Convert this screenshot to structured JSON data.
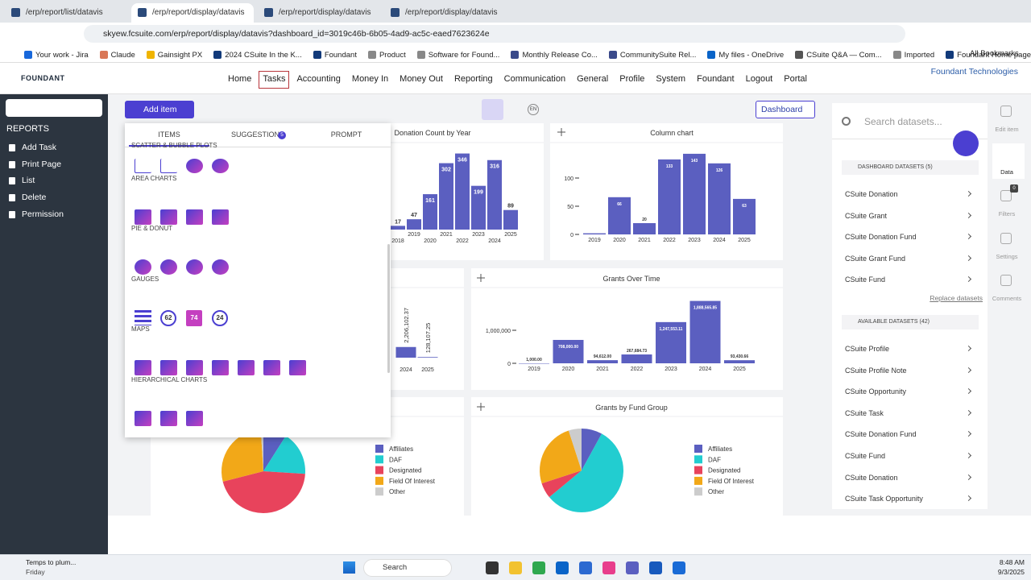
{
  "browser": {
    "tabs": [
      "/erp/report/list/datavis",
      "/erp/report/display/datavis",
      "/erp/report/display/datavis",
      "/erp/report/display/datavis"
    ],
    "url": "skyew.fcsuite.com/erp/report/display/datavis?dashboard_id=3019c46b-6b05-4ad9-ac5c-eaed7623624e",
    "bookmarks": [
      "Your work - Jira",
      "Claude",
      "Gainsight PX",
      "2024 CSuite In the K...",
      "Foundant",
      "Product",
      "Software for Found...",
      "Monthly Release Co...",
      "CommunitySuite Rel...",
      "My files - OneDrive",
      "CSuite Q&A — Com...",
      "Imported",
      "Foundant Home page"
    ],
    "all_bookmarks": "All Bookmarks"
  },
  "app": {
    "logo": "FOUNDANT",
    "nav": [
      "Home",
      "Tasks",
      "Accounting",
      "Money In",
      "Money Out",
      "Reporting",
      "Communication",
      "General",
      "Profile",
      "System",
      "Foundant",
      "Logout",
      "Portal"
    ],
    "active_nav": "Tasks",
    "org": "Foundant Technologies"
  },
  "sidebar": {
    "heading": "REPORTS",
    "items": [
      "Add Task",
      "Print Page",
      "List",
      "Delete",
      "Permission"
    ]
  },
  "toolbar": {
    "add_item": "Add item",
    "dashboard": "Dashboard",
    "language": "EN"
  },
  "add_panel": {
    "tabs": [
      "ITEMS",
      "SUGGESTIONS",
      "PROMPT"
    ],
    "suggestions_count": 5,
    "sections": [
      "SCATTER & BUBBLE PLOTS",
      "AREA CHARTS",
      "PIE & DONUT",
      "GAUGES",
      "MAPS",
      "HIERARCHICAL CHARTS"
    ],
    "gauge_samples": [
      "62",
      "74",
      "24"
    ]
  },
  "widgets": [
    {
      "type": "bar",
      "title": "Donation Count by Year",
      "categories": [
        "2018",
        "2019",
        "2020",
        "2021",
        "2022",
        "2023",
        "2024",
        "2025"
      ],
      "values": [
        17,
        47,
        161,
        302,
        346,
        199,
        316,
        89
      ],
      "ylim": [
        0,
        370
      ],
      "color": "#5b5fc0"
    },
    {
      "type": "bar",
      "title": "Column chart",
      "categories": [
        "2019",
        "2020",
        "2021",
        "2022",
        "2023",
        "2024",
        "2025"
      ],
      "values": [
        2,
        66,
        20,
        133,
        143,
        126,
        63
      ],
      "value_labels": [
        null,
        "66",
        "20",
        "133",
        "143",
        "126",
        "63"
      ],
      "ylim": [
        0,
        160
      ],
      "yticks": [
        0,
        50,
        100
      ],
      "color": "#5b5fc0"
    },
    {
      "type": "bar",
      "categories": [
        "2024",
        "2025"
      ],
      "values": [
        2206102.37,
        128107.25
      ],
      "value_labels": [
        "2,206,102.37",
        "128,107.25"
      ],
      "ylim": [
        0,
        14000000
      ],
      "rotated_labels": true,
      "color": "#5b5fc0"
    },
    {
      "type": "bar",
      "title": "Grants Over Time",
      "categories": [
        "2019",
        "2020",
        "2021",
        "2022",
        "2023",
        "2024",
        "2025"
      ],
      "values": [
        1000,
        708000,
        94612,
        267684.73,
        1247553.11,
        1888565.85,
        93430.66
      ],
      "value_labels": [
        "1,000.00",
        "708,000.00",
        "94,612.00",
        "267,684.73",
        "1,247,553.11",
        "1,888,565.85",
        "93,430.66"
      ],
      "ylim": [
        0,
        2000000
      ],
      "yticks": [
        0,
        {
          "value": 1000000,
          "label": "1,000,000"
        }
      ],
      "color": "#5b5fc0"
    },
    {
      "type": "pie",
      "categories": [
        "Affiliates",
        "DAF",
        "Designated",
        "Field Of Interest",
        "Other"
      ],
      "values": [
        9,
        17,
        45,
        28,
        1
      ],
      "colors": [
        "#5b5fc0",
        "#22cdd0",
        "#e8435c",
        "#f2a818",
        "#cccccc"
      ]
    },
    {
      "type": "pie",
      "title": "Grants by Fund Group",
      "categories": [
        "Affiliates",
        "DAF",
        "Designated",
        "Field Of Interest",
        "Other"
      ],
      "values": [
        8,
        56,
        6,
        25,
        5
      ],
      "colors": [
        "#5b5fc0",
        "#22cdd0",
        "#e8435c",
        "#f2a818",
        "#cccccc"
      ]
    }
  ],
  "datasets_panel": {
    "search_placeholder": "Search datasets...",
    "dashboard_heading": "DASHBOARD DATASETS (5)",
    "dashboard": [
      "CSuite Donation",
      "CSuite Grant",
      "CSuite Donation Fund",
      "CSuite Grant Fund",
      "CSuite Fund"
    ],
    "replace": "Replace datasets",
    "available_heading": "AVAILABLE DATASETS (42)",
    "available": [
      "CSuite Profile",
      "CSuite Profile Note",
      "CSuite Opportunity",
      "CSuite Task",
      "CSuite Donation Fund",
      "CSuite Fund",
      "CSuite Donation",
      "CSuite Task Opportunity"
    ]
  },
  "right_rail": {
    "items": [
      "Edit item",
      "Data",
      "Filters",
      "Settings",
      "Comments"
    ],
    "filters_count": 0
  },
  "taskbar": {
    "weather": "Temps to plum...",
    "day": "Friday",
    "search": "Search",
    "time": "8:48 AM",
    "date": "9/3/2025"
  }
}
